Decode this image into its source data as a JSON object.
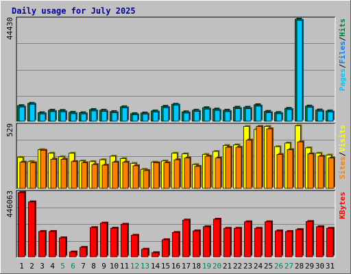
{
  "chart_data": [
    {
      "panel": "hits-files-pages",
      "type": "bar",
      "title": "Daily usage for July 2025",
      "ylabel_max": "44430",
      "ymax": 44430,
      "legend": [
        "Pages",
        "Files",
        "Hits"
      ],
      "colors": {
        "Pages": "#00c8ff",
        "Files": "#0080ff",
        "Hits": "#008040"
      },
      "categories": [
        "1",
        "2",
        "3",
        "4",
        "5",
        "6",
        "7",
        "8",
        "9",
        "10",
        "11",
        "12",
        "13",
        "14",
        "15",
        "16",
        "17",
        "18",
        "19",
        "20",
        "21",
        "22",
        "23",
        "24",
        "25",
        "26",
        "27",
        "28",
        "29",
        "30",
        "31"
      ],
      "series": [
        {
          "name": "Hits",
          "values": [
            6800,
            7800,
            3700,
            4800,
            4700,
            3900,
            3700,
            5100,
            4800,
            4200,
            6300,
            3300,
            3600,
            4500,
            6500,
            7400,
            4100,
            4800,
            5900,
            5300,
            4800,
            6100,
            6100,
            7200,
            4300,
            3800,
            5600,
            44430,
            6600,
            4900,
            4500
          ]
        },
        {
          "name": "Pages",
          "values": [
            6200,
            7400,
            3200,
            4200,
            4100,
            3300,
            3200,
            4500,
            4300,
            3700,
            5800,
            2800,
            3100,
            4000,
            5900,
            7000,
            3600,
            4300,
            5300,
            4700,
            4200,
            5500,
            5500,
            6600,
            3700,
            3300,
            5100,
            43900,
            6100,
            4400,
            4000
          ]
        }
      ]
    },
    {
      "panel": "visits-sites",
      "type": "bar",
      "ylabel_max": "529",
      "ymax": 529,
      "legend": [
        "Sites",
        "Visits"
      ],
      "colors": {
        "Visits": "#ffff00",
        "Sites": "#ff8000"
      },
      "series": [
        {
          "name": "Visits",
          "values": [
            260,
            225,
            325,
            295,
            265,
            295,
            230,
            225,
            240,
            270,
            250,
            210,
            160,
            220,
            230,
            295,
            290,
            200,
            285,
            310,
            360,
            365,
            520,
            495,
            520,
            350,
            380,
            525,
            340,
            295,
            280
          ]
        },
        {
          "name": "Sites",
          "values": [
            220,
            215,
            320,
            245,
            245,
            225,
            215,
            200,
            195,
            220,
            220,
            190,
            150,
            215,
            215,
            240,
            255,
            185,
            270,
            255,
            345,
            345,
            405,
            520,
            500,
            285,
            325,
            390,
            290,
            270,
            255
          ]
        }
      ]
    },
    {
      "panel": "kbytes",
      "type": "bar",
      "ylabel_max": "446063",
      "ymax": 446063,
      "legend": [
        "KBytes"
      ],
      "colors": {
        "KBytes": "#ff0000"
      },
      "series": [
        {
          "name": "KBytes",
          "values": [
            446063,
            381000,
            176000,
            176000,
            132000,
            34000,
            66000,
            203000,
            234000,
            199000,
            226000,
            150000,
            53000,
            29000,
            119000,
            169000,
            255000,
            180000,
            209000,
            261000,
            198000,
            198000,
            243000,
            198000,
            243000,
            180000,
            176000,
            189000,
            245000,
            209000,
            198000
          ]
        }
      ]
    }
  ],
  "x_axis": {
    "labels": [
      "1",
      "2",
      "3",
      "4",
      "5",
      "6",
      "7",
      "8",
      "9",
      "10",
      "11",
      "12",
      "13",
      "14",
      "15",
      "16",
      "17",
      "18",
      "19",
      "20",
      "21",
      "22",
      "23",
      "24",
      "25",
      "26",
      "27",
      "28",
      "29",
      "30",
      "31"
    ],
    "weekend_days": [
      5,
      6,
      12,
      13,
      19,
      20,
      26,
      27
    ],
    "weekday_color": "#000000",
    "weekend_color": "#00805a"
  },
  "frame": {
    "background": "#c0c0c0",
    "plot_bg": "#c0c0c0",
    "grid": "#808080",
    "title_color": "#0000a0"
  }
}
